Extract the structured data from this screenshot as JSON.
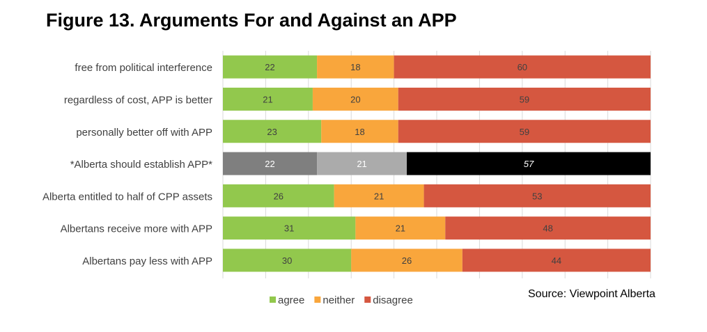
{
  "title": "Figure 13. Arguments For and Against an APP",
  "source": "Source: Viewpoint Alberta",
  "chart_data": {
    "type": "bar",
    "orientation": "horizontal",
    "stacked": true,
    "categories": [
      "free from political interference",
      "regardless of cost, APP is better",
      "personally better off with APP",
      "*Alberta should establish APP*",
      "Alberta entitled to half of CPP assets",
      "Albertans receive more with APP",
      "Albertans pay less with APP"
    ],
    "series": [
      {
        "name": "agree",
        "color": "#92c84d",
        "values": [
          22,
          21,
          23,
          22,
          26,
          31,
          30
        ]
      },
      {
        "name": "neither",
        "color": "#f9a63c",
        "values": [
          18,
          20,
          18,
          21,
          21,
          21,
          26
        ]
      },
      {
        "name": "disagree",
        "color": "#d55740",
        "values": [
          60,
          59,
          59,
          57,
          53,
          48,
          44
        ]
      }
    ],
    "highlight": {
      "category_index": 3,
      "colors": [
        "#7f7f7f",
        "#ababab",
        "#000000"
      ],
      "label_color": "#ffffff"
    },
    "xlim": [
      0,
      100
    ],
    "grid": true,
    "legend_position": "bottom"
  }
}
